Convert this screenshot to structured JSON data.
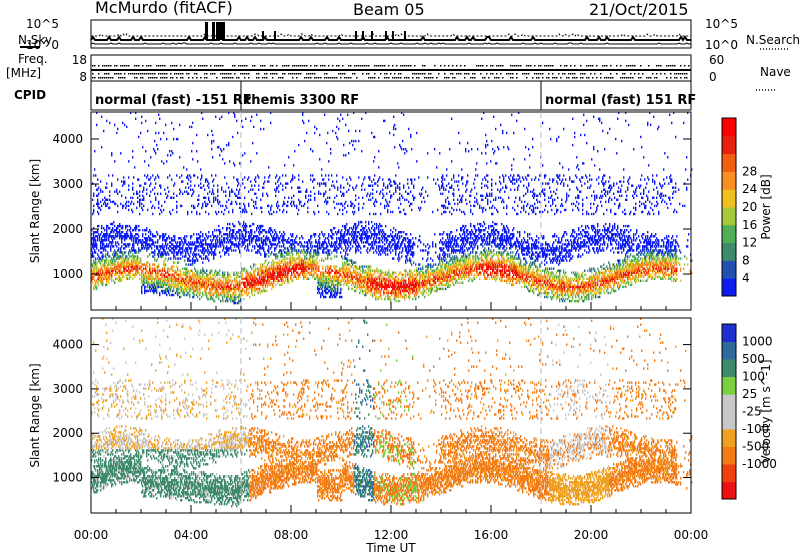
{
  "header": {
    "station": "McMurdo (fitACF)",
    "beam": "Beam 05",
    "date": "21/Oct/2015"
  },
  "small_panels": {
    "nsky_label": "N.Sky",
    "nsearch_label": "N.Search",
    "nsky_ticks": [
      "10^5",
      "10^0"
    ],
    "nsearch_ticks": [
      "10^5",
      "10^0"
    ],
    "freq_label_1": "Freq.",
    "freq_label_2": "[MHz]",
    "freq_ticks": [
      "18",
      "8"
    ],
    "nave_label": "Nave",
    "nave_ticks": [
      "60",
      "0"
    ],
    "cpid_label": "CPID"
  },
  "cpid_segments": [
    {
      "label": "normal (fast) -151 RF",
      "start_hour": 0,
      "end_hour": 6
    },
    {
      "label": "themis 3300 RF",
      "start_hour": 6,
      "end_hour": 18
    },
    {
      "label": "normal (fast) 151 RF",
      "start_hour": 18,
      "end_hour": 24
    }
  ],
  "colors": {
    "power": [
      "#0d1cf0",
      "#2050b0",
      "#3d8a6c",
      "#4fae58",
      "#a8c83c",
      "#f0c020",
      "#f79020",
      "#f06010",
      "#e82010",
      "#ff0000"
    ],
    "velocity": [
      "#ee1111",
      "#f04010",
      "#f47a18",
      "#f0a020",
      "#c8c8c8",
      "#c8c8c8",
      "#7ad040",
      "#3d8a6c",
      "#2f6a9c",
      "#2030d0"
    ]
  },
  "chart_data": [
    {
      "type": "heatmap",
      "name": "power",
      "xlabel": "",
      "ylabel": "Slant Range [km]",
      "xlim": [
        0,
        24
      ],
      "ylim": [
        200,
        4600
      ],
      "yticks": [
        "1000",
        "2000",
        "3000",
        "4000"
      ],
      "colorbar_label": "Power [dB]",
      "colorbar_ticks": [
        "4",
        "8",
        "12",
        "16",
        "20",
        "24",
        "28"
      ],
      "grid": false
    },
    {
      "type": "heatmap",
      "name": "velocity",
      "xlabel": "Time UT",
      "ylabel": "Slant Range [km]",
      "xlim": [
        0,
        24
      ],
      "ylim": [
        200,
        4600
      ],
      "xticks": [
        "00:00",
        "04:00",
        "08:00",
        "12:00",
        "16:00",
        "20:00",
        "00:00"
      ],
      "yticks": [
        "1000",
        "2000",
        "3000",
        "4000"
      ],
      "colorbar_label": "Velocity [m s^-1]",
      "colorbar_ticks": [
        "1000",
        "500",
        "100",
        "25",
        "-25",
        "-100",
        "-500",
        "-1000"
      ],
      "grid": false
    }
  ]
}
